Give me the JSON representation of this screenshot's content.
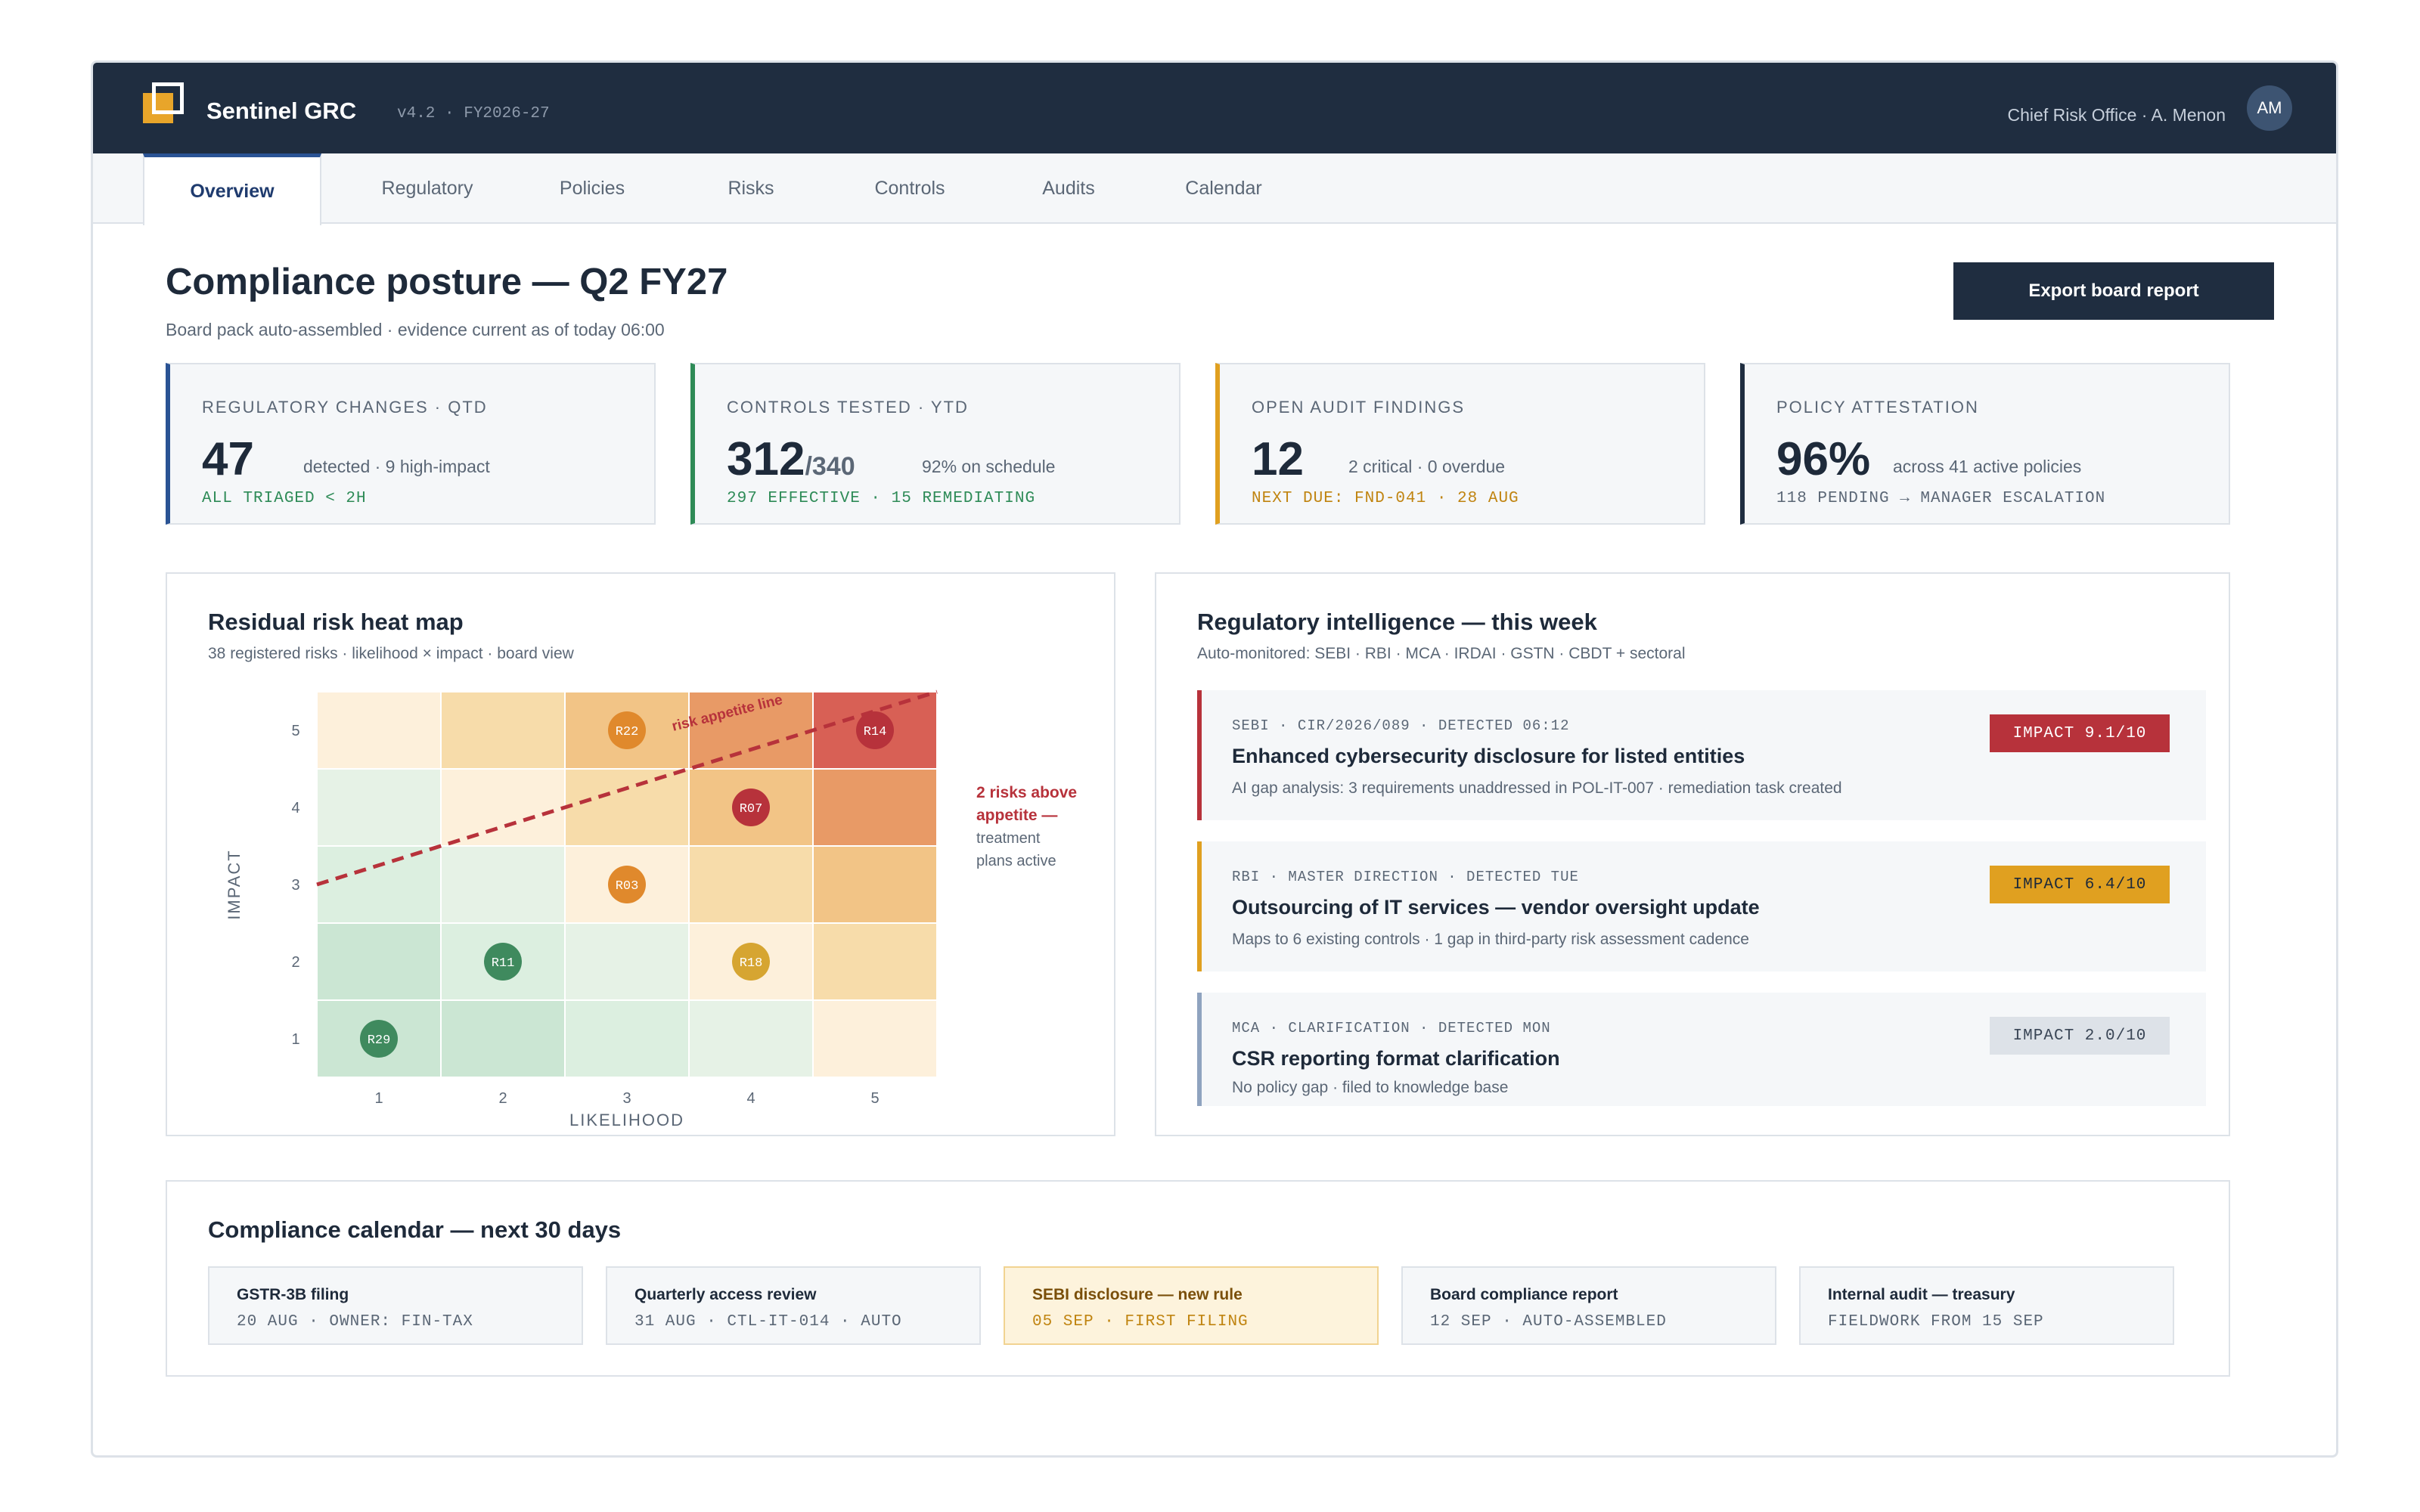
{
  "app": {
    "brand": "Sentinel GRC",
    "version": "v4.2 · FY2026-27",
    "user_line": "Chief Risk Office · A. Menon",
    "avatar_initials": "AM"
  },
  "tabs": [
    {
      "label": "Overview",
      "active": true
    },
    {
      "label": "Regulatory"
    },
    {
      "label": "Policies"
    },
    {
      "label": "Risks"
    },
    {
      "label": "Controls"
    },
    {
      "label": "Audits"
    },
    {
      "label": "Calendar"
    }
  ],
  "header": {
    "title": "Compliance posture — Q2 FY27",
    "subtitle": "Board pack auto-assembled · evidence current as of today 06:00",
    "export_label": "Export board report"
  },
  "kpis": [
    {
      "label": "REGULATORY CHANGES · QTD",
      "value": "47",
      "suffix": "",
      "detail": "detected · 9 high-impact",
      "foot": "ALL TRIAGED < 2H",
      "accent": "#2a5394",
      "foot_color": "#2e8b57"
    },
    {
      "label": "CONTROLS TESTED · YTD",
      "value": "312",
      "suffix": "/340",
      "detail": "92% on schedule",
      "foot": "297 EFFECTIVE · 15 REMEDIATING",
      "accent": "#2e8b57",
      "foot_color": "#2e8b57"
    },
    {
      "label": "OPEN AUDIT FINDINGS",
      "value": "12",
      "suffix": "",
      "detail": "2 critical · 0 overdue",
      "foot": "NEXT DUE: FND-041 · 28 AUG",
      "accent": "#e0a020",
      "foot_color": "#c08410"
    },
    {
      "label": "POLICY ATTESTATION",
      "value": "96%",
      "suffix": "",
      "detail": "across 41 active policies",
      "foot": "118 PENDING → MANAGER ESCALATION",
      "accent": "#1f2d40",
      "foot_color": "#5b6776"
    }
  ],
  "heatmap": {
    "title": "Residual risk heat map",
    "subtitle": "38 registered risks · likelihood × impact · board view",
    "xlabel": "LIKELIHOOD",
    "ylabel": "IMPACT",
    "x_ticks": [
      "1",
      "2",
      "3",
      "4",
      "5"
    ],
    "y_ticks": [
      "1",
      "2",
      "3",
      "4",
      "5"
    ],
    "cell_colors": [
      [
        "#cbe6d3",
        "#cbe6d3",
        "#dcefe0",
        "#e6f2e6",
        "#fdf0db"
      ],
      [
        "#cbe6d3",
        "#dcefe0",
        "#e6f2e6",
        "#fdf0db",
        "#f7dcaa"
      ],
      [
        "#dcefe0",
        "#e6f2e6",
        "#fdf0db",
        "#f7dcaa",
        "#f2c486"
      ],
      [
        "#e6f2e6",
        "#fdf0db",
        "#f7dcaa",
        "#f2c486",
        "#e89a66"
      ],
      [
        "#fdf0db",
        "#f7dcaa",
        "#f2c486",
        "#e89a66",
        "#d86055"
      ]
    ],
    "risks": [
      {
        "id": "R22",
        "likelihood": 3,
        "impact": 5,
        "color": "#e0892c"
      },
      {
        "id": "R14",
        "likelihood": 5,
        "impact": 5,
        "color": "#b7323b"
      },
      {
        "id": "R07",
        "likelihood": 4,
        "impact": 4,
        "color": "#b7323b"
      },
      {
        "id": "R03",
        "likelihood": 3,
        "impact": 3,
        "color": "#e0892c"
      },
      {
        "id": "R11",
        "likelihood": 2,
        "impact": 2,
        "color": "#3f8a5e"
      },
      {
        "id": "R18",
        "likelihood": 4,
        "impact": 2,
        "color": "#d6a531"
      },
      {
        "id": "R29",
        "likelihood": 1,
        "impact": 1,
        "color": "#3f8a5e"
      }
    ],
    "appetite_label": "risk appetite line",
    "appetite_line": {
      "start": [
        0.5,
        3.0
      ],
      "end": [
        5.5,
        5.5
      ]
    },
    "note_strong_1": "2 risks above",
    "note_strong_2": "appetite —",
    "note_1": "treatment",
    "note_2": "plans active"
  },
  "regintel": {
    "title": "Regulatory intelligence — this week",
    "subtitle": "Auto-monitored: SEBI · RBI · MCA · IRDAI · GSTN · CBDT + sectoral",
    "items": [
      {
        "meta": "SEBI · CIR/2026/089 · DETECTED 06:12",
        "title": "Enhanced cybersecurity disclosure for listed entities",
        "desc": "AI gap analysis: 3 requirements unaddressed in POL-IT-007 · remediation task created",
        "impact": "IMPACT 9.1/10",
        "accent": "#b7323b",
        "impact_bg": "#b7323b",
        "impact_fg": "#ffffff"
      },
      {
        "meta": "RBI · MASTER DIRECTION · DETECTED TUE",
        "title": "Outsourcing of IT services — vendor oversight update",
        "desc": "Maps to 6 existing controls · 1 gap in third-party risk assessment cadence",
        "impact": "IMPACT 6.4/10",
        "accent": "#e0a020",
        "impact_bg": "#e0a020",
        "impact_fg": "#1e2a3a"
      },
      {
        "meta": "MCA · CLARIFICATION · DETECTED MON",
        "title": "CSR reporting format clarification",
        "desc": "No policy gap · filed to knowledge base",
        "impact": "IMPACT 2.0/10",
        "accent": "#8fa3bf",
        "impact_bg": "#dde2e8",
        "impact_fg": "#3a4656"
      }
    ]
  },
  "calendar": {
    "title": "Compliance calendar — next 30 days",
    "items": [
      {
        "title": "GSTR-3B filing",
        "meta": "20 AUG · OWNER: FIN-TAX"
      },
      {
        "title": "Quarterly access review",
        "meta": "31 AUG · CTL-IT-014 · AUTO"
      },
      {
        "title": "SEBI disclosure — new rule",
        "meta": "05 SEP · FIRST FILING",
        "highlight": true
      },
      {
        "title": "Board compliance report",
        "meta": "12 SEP · AUTO-ASSEMBLED"
      },
      {
        "title": "Internal audit — treasury",
        "meta": "FIELDWORK FROM 15 SEP"
      }
    ]
  }
}
